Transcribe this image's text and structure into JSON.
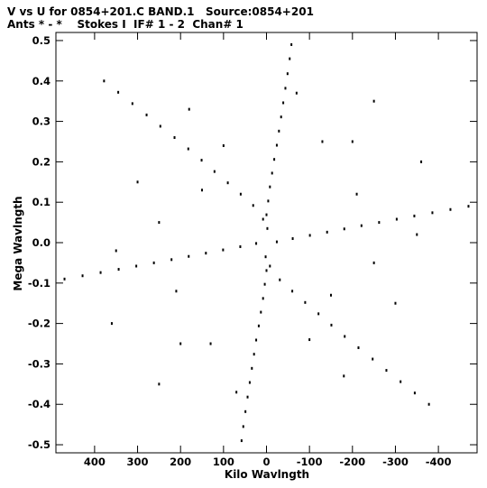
{
  "header": {
    "line1": "V vs U for 0854+201.C BAND.1   Source:0854+201",
    "line2": "Ants * - *    Stokes I  IF# 1 - 2  Chan# 1"
  },
  "chart_data": {
    "type": "scatter",
    "title": "V vs U for 0854+201.C BAND.1   Source:0854+201",
    "subtitle": "Ants * - *    Stokes I  IF# 1 - 2  Chan# 1",
    "xlabel": "Kilo Wavlngth",
    "ylabel": "Mega Wavlngth",
    "x_units": "kilo wavelengths",
    "y_units": "mega wavelengths",
    "xlim": [
      490,
      -490
    ],
    "ylim": [
      -0.52,
      0.52
    ],
    "x_inverted": true,
    "grid": false,
    "xticks": [
      400,
      300,
      200,
      100,
      0,
      -100,
      -200,
      -300,
      -400
    ],
    "xtick_labels": [
      "400",
      "300",
      "200",
      "100",
      "0",
      "-100",
      "-200",
      "-300",
      "-400"
    ],
    "yticks": [
      0.5,
      0.4,
      0.3,
      0.2,
      0.1,
      0.0,
      -0.1,
      -0.2,
      -0.3,
      -0.4,
      -0.5
    ],
    "ytick_labels": [
      "0.5",
      "0.4",
      "0.3",
      "0.2",
      "0.1",
      "0.0",
      "-0.1",
      "-0.2",
      "-0.3",
      "-0.4",
      "-0.5"
    ],
    "pattern": "six-armed star uv-coverage (VLA Y), point-symmetric about origin",
    "arm_tips": [
      {
        "u": -60,
        "v": 0.49
      },
      {
        "u": 60,
        "v": -0.49
      },
      {
        "u": 380,
        "v": 0.4
      },
      {
        "u": -380,
        "v": -0.4
      },
      {
        "u": 470,
        "v": -0.09
      },
      {
        "u": -470,
        "v": 0.09
      }
    ],
    "series": [
      {
        "points": [
          [
            -58,
            0.49
          ],
          [
            -54,
            0.455
          ],
          [
            -49,
            0.418
          ],
          [
            -44,
            0.382
          ],
          [
            -39,
            0.346
          ],
          [
            -34,
            0.311
          ],
          [
            -29,
            0.276
          ],
          [
            -24,
            0.241
          ],
          [
            -18,
            0.206
          ],
          [
            -13,
            0.172
          ],
          [
            -8,
            0.138
          ],
          [
            -4,
            0.103
          ],
          [
            0,
            0.069
          ],
          [
            -2,
            0.035
          ],
          [
            378,
            0.4
          ],
          [
            345,
            0.372
          ],
          [
            312,
            0.344
          ],
          [
            279,
            0.316
          ],
          [
            247,
            0.288
          ],
          [
            214,
            0.26
          ],
          [
            182,
            0.232
          ],
          [
            151,
            0.204
          ],
          [
            121,
            0.176
          ],
          [
            90,
            0.148
          ],
          [
            60,
            0.12
          ],
          [
            31,
            0.092
          ],
          [
            8,
            0.058
          ],
          [
            470,
            -0.09
          ],
          [
            428,
            -0.082
          ],
          [
            386,
            -0.074
          ],
          [
            344,
            -0.066
          ],
          [
            303,
            -0.058
          ],
          [
            262,
            -0.05
          ],
          [
            221,
            -0.042
          ],
          [
            181,
            -0.034
          ],
          [
            141,
            -0.026
          ],
          [
            101,
            -0.018
          ],
          [
            61,
            -0.01
          ],
          [
            24,
            -0.002
          ],
          [
            58,
            -0.49
          ],
          [
            54,
            -0.455
          ],
          [
            49,
            -0.418
          ],
          [
            44,
            -0.382
          ],
          [
            39,
            -0.346
          ],
          [
            34,
            -0.311
          ],
          [
            29,
            -0.276
          ],
          [
            24,
            -0.241
          ],
          [
            18,
            -0.206
          ],
          [
            13,
            -0.172
          ],
          [
            8,
            -0.138
          ],
          [
            4,
            -0.103
          ],
          [
            0,
            -0.069
          ],
          [
            2,
            -0.035
          ],
          [
            -378,
            -0.4
          ],
          [
            -345,
            -0.372
          ],
          [
            -312,
            -0.344
          ],
          [
            -279,
            -0.316
          ],
          [
            -247,
            -0.288
          ],
          [
            -214,
            -0.26
          ],
          [
            -182,
            -0.232
          ],
          [
            -151,
            -0.204
          ],
          [
            -121,
            -0.176
          ],
          [
            -90,
            -0.148
          ],
          [
            -60,
            -0.12
          ],
          [
            -31,
            -0.092
          ],
          [
            -8,
            -0.058
          ],
          [
            -470,
            0.09
          ],
          [
            -428,
            0.082
          ],
          [
            -386,
            0.074
          ],
          [
            -344,
            0.066
          ],
          [
            -303,
            0.058
          ],
          [
            -262,
            0.05
          ],
          [
            -221,
            0.042
          ],
          [
            -181,
            0.034
          ],
          [
            -141,
            0.026
          ],
          [
            -101,
            0.018
          ],
          [
            -61,
            0.01
          ],
          [
            -24,
            0.002
          ],
          [
            150,
            0.13
          ],
          [
            250,
            0.05
          ],
          [
            350,
            -0.02
          ],
          [
            210,
            -0.12
          ],
          [
            130,
            -0.25
          ],
          [
            70,
            -0.37
          ],
          [
            -150,
            -0.13
          ],
          [
            -250,
            -0.05
          ],
          [
            -350,
            0.02
          ],
          [
            -210,
            0.12
          ],
          [
            -130,
            0.25
          ],
          [
            -70,
            0.37
          ],
          [
            100,
            0.24
          ],
          [
            -100,
            -0.24
          ],
          [
            300,
            0.15
          ],
          [
            -300,
            -0.15
          ],
          [
            200,
            -0.25
          ],
          [
            -200,
            0.25
          ],
          [
            360,
            -0.2
          ],
          [
            -360,
            0.2
          ],
          [
            250,
            -0.35
          ],
          [
            -250,
            0.35
          ],
          [
            180,
            0.33
          ],
          [
            -180,
            -0.33
          ]
        ]
      }
    ]
  }
}
